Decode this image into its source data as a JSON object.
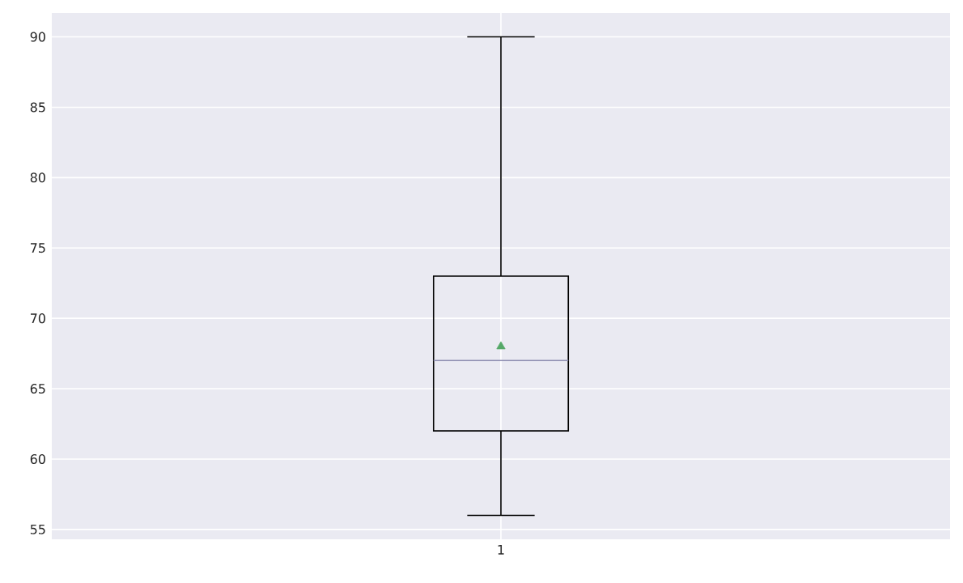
{
  "chart_data": {
    "type": "box",
    "categories": [
      "1"
    ],
    "boxes": [
      {
        "low": 56,
        "q1": 62,
        "median": 67,
        "q3": 73,
        "high": 90,
        "mean": 68
      }
    ],
    "ylim": [
      54.3,
      91.7
    ],
    "yticks": [
      55,
      60,
      65,
      70,
      75,
      80,
      85,
      90
    ],
    "grid": true
  }
}
